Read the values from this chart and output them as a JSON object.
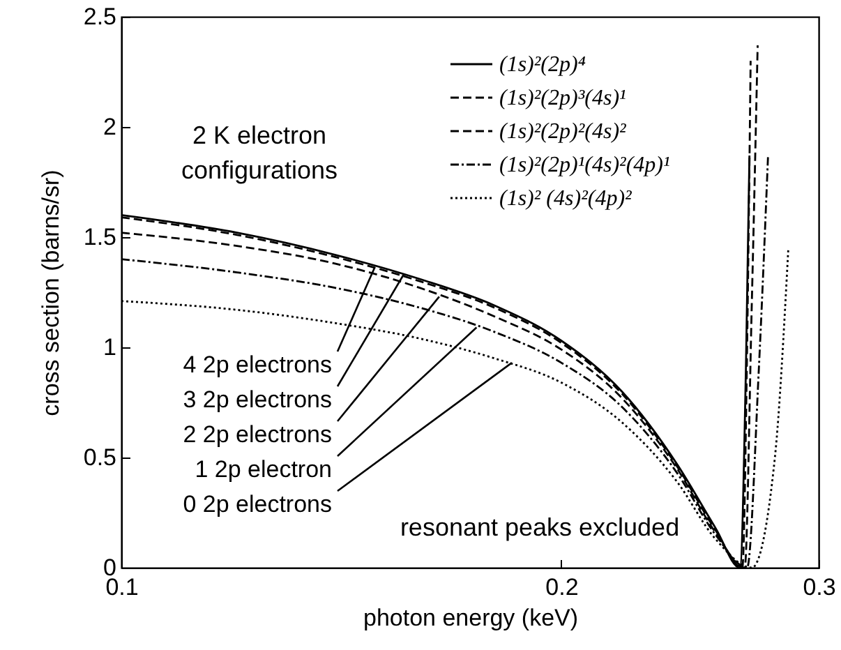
{
  "chart_data": {
    "type": "line",
    "xlabel": "photon energy (keV)",
    "ylabel": "cross section (barns/sr)",
    "log": "x",
    "xlim": [
      0.1,
      0.3
    ],
    "xticks": [
      0.1,
      0.2,
      0.3
    ],
    "ylim": [
      0,
      2.5
    ],
    "yticks": [
      0,
      0.5,
      1,
      1.5,
      2,
      2.5
    ],
    "grid": false,
    "legend": "top right",
    "marker": "none",
    "series": [
      {
        "name": "(1s)²(2p)⁴",
        "color": "#000000",
        "line_style": "solid",
        "x": [
          0.1,
          0.12,
          0.14,
          0.16,
          0.18,
          0.2,
          0.22,
          0.24,
          0.255,
          0.265,
          0.2675,
          0.269
        ],
        "values": [
          1.6,
          1.52,
          1.42,
          1.31,
          1.19,
          1.03,
          0.8,
          0.47,
          0.18,
          0.0,
          0.9,
          1.87
        ]
      },
      {
        "name": "(1s)²(2p)³(4s)¹",
        "color": "#000000",
        "line_style": "dashed",
        "x": [
          0.1,
          0.12,
          0.14,
          0.16,
          0.18,
          0.2,
          0.22,
          0.24,
          0.255,
          0.266,
          0.268,
          0.2695
        ],
        "values": [
          1.59,
          1.51,
          1.41,
          1.3,
          1.18,
          1.02,
          0.79,
          0.46,
          0.17,
          0.0,
          1.0,
          2.3
        ]
      },
      {
        "name": "(1s)²(2p)²(4s)²",
        "color": "#000000",
        "line_style": "dashed",
        "x": [
          0.1,
          0.12,
          0.14,
          0.16,
          0.18,
          0.2,
          0.22,
          0.24,
          0.255,
          0.267,
          0.27,
          0.2725
        ],
        "values": [
          1.52,
          1.46,
          1.38,
          1.27,
          1.14,
          0.99,
          0.77,
          0.45,
          0.16,
          0.0,
          1.2,
          2.37
        ]
      },
      {
        "name": "(1s)²(2p)¹(4s)²(4p)¹",
        "color": "#000000",
        "line_style": "dashdot",
        "x": [
          0.1,
          0.12,
          0.14,
          0.16,
          0.18,
          0.2,
          0.22,
          0.24,
          0.255,
          0.268,
          0.273,
          0.277
        ],
        "values": [
          1.4,
          1.34,
          1.27,
          1.18,
          1.07,
          0.93,
          0.73,
          0.43,
          0.15,
          0.0,
          0.9,
          1.87
        ]
      },
      {
        "name": "(1s)² (4s)²(4p)²",
        "color": "#000000",
        "line_style": "dotted",
        "x": [
          0.1,
          0.12,
          0.14,
          0.16,
          0.18,
          0.2,
          0.22,
          0.24,
          0.255,
          0.27,
          0.28,
          0.286
        ],
        "values": [
          1.21,
          1.17,
          1.11,
          1.04,
          0.95,
          0.84,
          0.66,
          0.39,
          0.13,
          0.0,
          0.5,
          1.45
        ]
      }
    ],
    "annotations": [
      "2 K electron",
      "configurations",
      {
        "text": "4 2p electrons",
        "x": 0.149,
        "y": 1.36
      },
      {
        "text": "3 2p electrons",
        "x": 0.156,
        "y": 1.33
      },
      {
        "text": "2 2p electrons",
        "x": 0.165,
        "y": 1.23
      },
      {
        "text": "1 2p electron",
        "x": 0.175,
        "y": 1.09
      },
      {
        "text": "0 2p electrons",
        "x": 0.185,
        "y": 0.93
      },
      "resonant peaks excluded"
    ]
  }
}
